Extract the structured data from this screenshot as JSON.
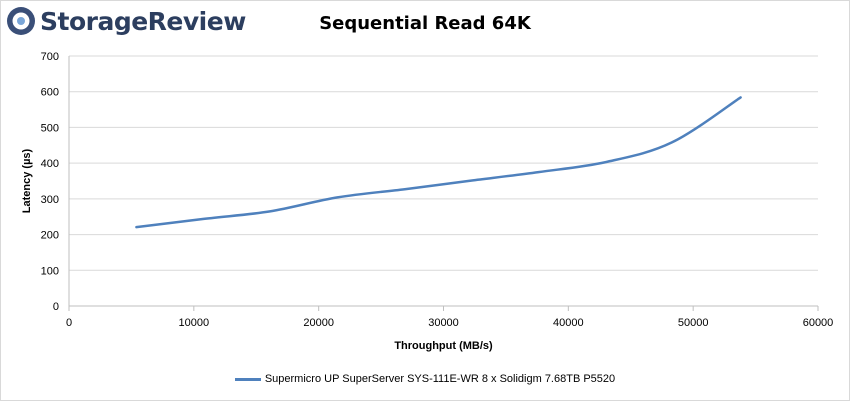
{
  "brand": {
    "name": "StorageReview",
    "color": "#2c3e5f",
    "icon": "storagereview-logo-icon"
  },
  "chart_data": {
    "type": "line",
    "title": "Sequential Read 64K",
    "xlabel": "Throughput (MB/s)",
    "ylabel": "Latency (µs)",
    "xlim": [
      0,
      60000
    ],
    "ylim": [
      0,
      700
    ],
    "xticks": [
      0,
      10000,
      20000,
      30000,
      40000,
      50000,
      60000
    ],
    "yticks": [
      0,
      100,
      200,
      300,
      400,
      500,
      600,
      700
    ],
    "grid": "horizontal",
    "legend_position": "bottom",
    "series": [
      {
        "name": "Supermicro UP SuperServer SYS-111E-WR 8 x Solidigm 7.68TB P5520",
        "color": "#4f81bd",
        "x": [
          5400,
          10800,
          16100,
          21500,
          26900,
          32200,
          37600,
          43000,
          48300,
          53800
        ],
        "y": [
          221,
          244,
          265,
          304,
          327,
          351,
          375,
          403,
          458,
          584
        ]
      }
    ]
  }
}
